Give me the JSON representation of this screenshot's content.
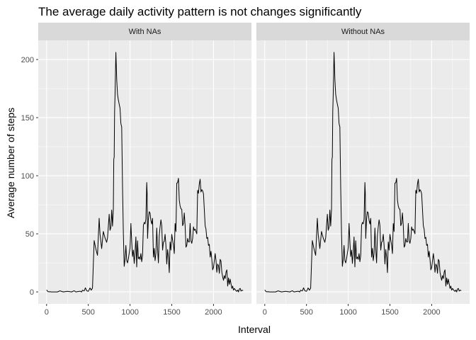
{
  "chart_data": {
    "type": "line",
    "title": "The average daily activity pattern is not changes significantly",
    "xlabel": "Interval",
    "ylabel": "Average number of steps",
    "xlim": [
      -100,
      2455
    ],
    "ylim": [
      -10.3,
      216.5
    ],
    "xticks": [
      0,
      500,
      1000,
      1500,
      2000
    ],
    "yticks": [
      0,
      50,
      100,
      150,
      200
    ],
    "xtick_labels": [
      "0",
      "500",
      "1000",
      "1500",
      "2000"
    ],
    "ytick_labels": [
      "0",
      "50",
      "100",
      "150",
      "200"
    ],
    "grid": true,
    "line_color": "#000000",
    "panel_background": "#ebebeb",
    "strip_background": "#d9d9d9",
    "panels": [
      {
        "label": "With NAs"
      },
      {
        "label": "Without NAs"
      }
    ],
    "series": [
      {
        "x": [
          0,
          15,
          25,
          40,
          55,
          100,
          130,
          160,
          200,
          250,
          300,
          330,
          350,
          400,
          420,
          430,
          450,
          465,
          480,
          500,
          520,
          535,
          550,
          570,
          590,
          610,
          630,
          640,
          660,
          680,
          700,
          720,
          730,
          750,
          760,
          770,
          780,
          790,
          800,
          805,
          810,
          815,
          820,
          825,
          830,
          835,
          840,
          850,
          860,
          870,
          880,
          890,
          900,
          910,
          920,
          930,
          940,
          950,
          960,
          970,
          980,
          1000,
          1010,
          1020,
          1030,
          1040,
          1050,
          1060,
          1070,
          1080,
          1090,
          1100,
          1110,
          1120,
          1130,
          1140,
          1150,
          1160,
          1170,
          1180,
          1190,
          1200,
          1205,
          1210,
          1220,
          1230,
          1240,
          1250,
          1260,
          1270,
          1280,
          1290,
          1300,
          1310,
          1320,
          1330,
          1340,
          1350,
          1360,
          1370,
          1380,
          1390,
          1400,
          1410,
          1420,
          1430,
          1440,
          1450,
          1460,
          1470,
          1480,
          1490,
          1500,
          1510,
          1520,
          1530,
          1540,
          1550,
          1560,
          1570,
          1580,
          1590,
          1600,
          1610,
          1620,
          1630,
          1640,
          1650,
          1660,
          1670,
          1680,
          1690,
          1700,
          1710,
          1720,
          1730,
          1740,
          1750,
          1760,
          1770,
          1780,
          1790,
          1800,
          1810,
          1820,
          1830,
          1840,
          1850,
          1860,
          1870,
          1880,
          1890,
          1900,
          1910,
          1920,
          1930,
          1940,
          1950,
          1960,
          1970,
          1980,
          1990,
          2000,
          2010,
          2020,
          2030,
          2040,
          2050,
          2060,
          2070,
          2080,
          2090,
          2100,
          2110,
          2120,
          2130,
          2140,
          2150,
          2160,
          2170,
          2180,
          2190,
          2200,
          2210,
          2220,
          2230,
          2240,
          2250,
          2260,
          2270,
          2280,
          2290,
          2300,
          2310,
          2320,
          2330,
          2340,
          2355
        ],
        "y": [
          1.7,
          0.3,
          0.1,
          0.2,
          0.0,
          0.0,
          0.0,
          0.9,
          0.0,
          0.5,
          0.0,
          1.0,
          0.0,
          0.6,
          0.0,
          1.5,
          0.8,
          3.5,
          1.0,
          0.5,
          3.4,
          1.5,
          3.3,
          44.2,
          37.0,
          31.5,
          63.4,
          49.9,
          37.3,
          52.0,
          46.5,
          42.7,
          46.5,
          66.8,
          53.0,
          55.4,
          70.5,
          56.6,
          71.6,
          114.1,
          116.0,
          155.6,
          168.5,
          187.0,
          206.2,
          196.0,
          183.4,
          170.0,
          165.2,
          161.6,
          158.2,
          145.0,
          142.0,
          90.0,
          50.2,
          22.0,
          28.0,
          40.0,
          27.0,
          25.0,
          28.5,
          38.0,
          59.0,
          43.0,
          30.5,
          36.0,
          24.5,
          33.9,
          47.3,
          21.5,
          44.0,
          28.5,
          30.0,
          28.0,
          33.0,
          26.0,
          31.6,
          57.4,
          59.8,
          58.6,
          62.5,
          94.2,
          85.0,
          46.0,
          62.5,
          69.0,
          68.0,
          61.5,
          58.4,
          63.3,
          30.0,
          37.5,
          26.9,
          33.4,
          55.0,
          37.0,
          25.0,
          48.4,
          56.0,
          62.0,
          57.0,
          36.0,
          42.7,
          43.6,
          49.6,
          40.0,
          24.0,
          36.5,
          30.0,
          16.6,
          43.0,
          36.0,
          49.5,
          44.8,
          40.4,
          33.0,
          58.9,
          52.0,
          93.7,
          94.0,
          97.8,
          79.0,
          74.0,
          71.6,
          71.0,
          57.0,
          59.0,
          68.0,
          57.0,
          38.5,
          40.0,
          46.0,
          43.0,
          43.0,
          59.0,
          44.0,
          41.8,
          46.0,
          56.0,
          53.0,
          54.0,
          52.0,
          50.0,
          87.5,
          84.9,
          93.0,
          97.0,
          86.0,
          88.0,
          87.0,
          84.5,
          71.0,
          57.0,
          54.0,
          46.0,
          47.0,
          40.0,
          41.0,
          30.0,
          35.0,
          28.0,
          19.0,
          21.0,
          27.0,
          33.0,
          27.0,
          16.9,
          24.0,
          22.5,
          16.0,
          28.0,
          26.5,
          17.0,
          13.0,
          10.0,
          14.0,
          11.5,
          17.0,
          19.0,
          5.0,
          12.0,
          6.5,
          11.0,
          7.0,
          3.0,
          5.0,
          1.5,
          3.0,
          2.0,
          1.0,
          0.5,
          1.6,
          0.0,
          2.5,
          3.0,
          0.7,
          1.5,
          1.1
        ]
      }
    ]
  }
}
